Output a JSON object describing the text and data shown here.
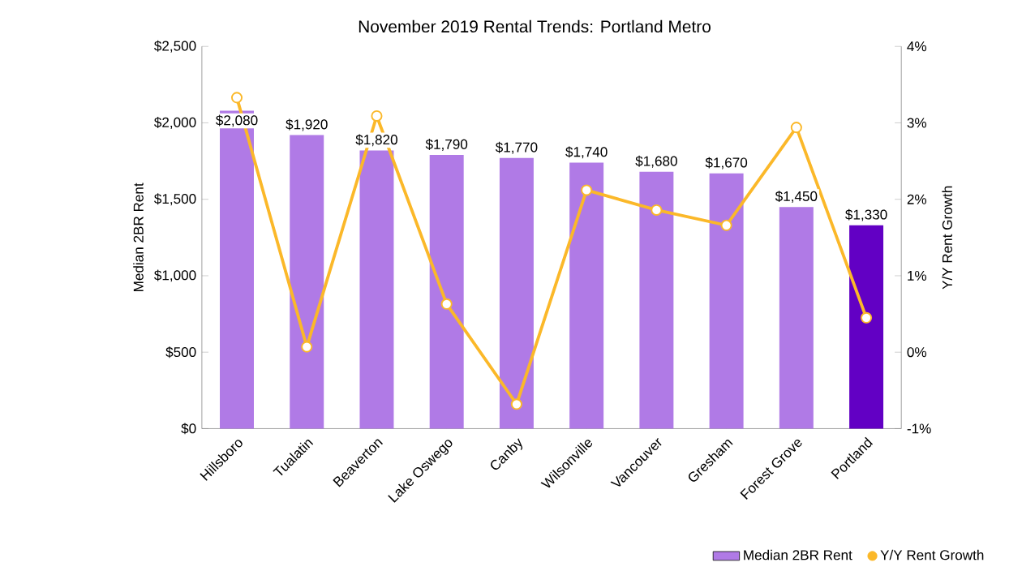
{
  "chart_data": {
    "type": "bar",
    "title": "November 2019 Rental Trends: Portland Metro",
    "ylabel": "Median 2BR Rent",
    "y2label": "Y/Y Rent Growth",
    "categories": [
      "Hillsboro",
      "Tualatin",
      "Beaverton",
      "Lake Oswego",
      "Canby",
      "Wilsonville",
      "Vancouver",
      "Gresham",
      "Forest Grove",
      "Portland"
    ],
    "series": [
      {
        "name": "Median 2BR Rent",
        "colors": [
          "#b07ae6",
          "#b07ae6",
          "#b07ae6",
          "#b07ae6",
          "#b07ae6",
          "#b07ae6",
          "#b07ae6",
          "#b07ae6",
          "#b07ae6",
          "#6200c4"
        ],
        "values": [
          2080,
          1920,
          1820,
          1790,
          1770,
          1740,
          1680,
          1670,
          1450,
          1330
        ],
        "value_labels": [
          "$2,080",
          "$1,920",
          "$1,820",
          "$1,790",
          "$1,770",
          "$1,740",
          "$1,680",
          "$1,670",
          "$1,450",
          "$1,330"
        ]
      },
      {
        "name": "Y/Y Rent Growth",
        "type": "line",
        "axis": "y2",
        "color": "#fbb829",
        "values": [
          3.33,
          0.07,
          3.09,
          0.63,
          -0.68,
          2.12,
          1.86,
          1.66,
          2.94,
          0.45
        ]
      }
    ],
    "ylim": [
      0,
      2500
    ],
    "yticks": [
      {
        "value": 0,
        "label": "$0"
      },
      {
        "value": 500,
        "label": "$500"
      },
      {
        "value": 1000,
        "label": "$1,000"
      },
      {
        "value": 1500,
        "label": "$1,500"
      },
      {
        "value": 2000,
        "label": "$2,000"
      },
      {
        "value": 2500,
        "label": "$2,500"
      }
    ],
    "y2lim": [
      -1,
      4
    ],
    "y2ticks": [
      {
        "value": -1,
        "label": "-1%"
      },
      {
        "value": 0,
        "label": "0%"
      },
      {
        "value": 1,
        "label": "1%"
      },
      {
        "value": 2,
        "label": "2%"
      },
      {
        "value": 3,
        "label": "3%"
      },
      {
        "value": 4,
        "label": "4%"
      }
    ],
    "marker": "circle",
    "legend": "bottom right"
  }
}
